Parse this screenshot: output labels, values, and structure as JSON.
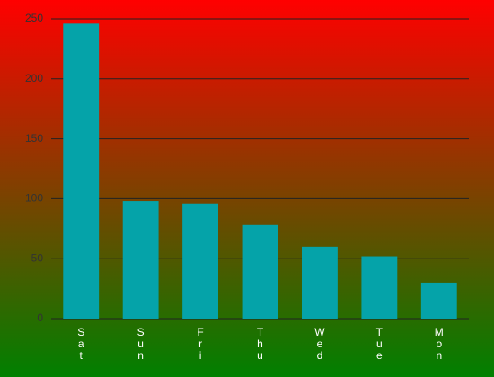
{
  "chart_data": {
    "type": "bar",
    "categories": [
      "Sat",
      "Sun",
      "Fri",
      "Thu",
      "Wed",
      "Tue",
      "Mon"
    ],
    "values": [
      246,
      98,
      96,
      78,
      60,
      52,
      30
    ],
    "color": "#05a3a9",
    "ylim": [
      0,
      250
    ],
    "yticks": [
      0,
      50,
      100,
      150,
      200,
      250
    ],
    "grid": true
  }
}
